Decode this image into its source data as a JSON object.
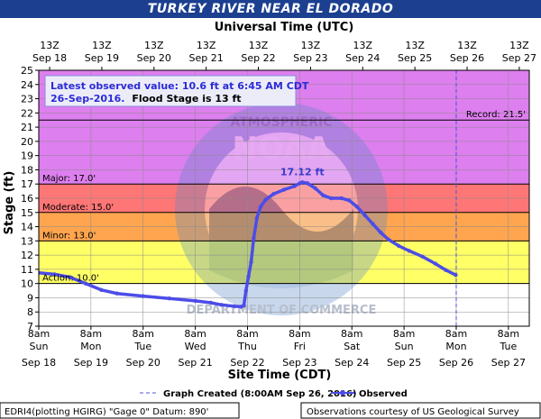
{
  "title": "TURKEY RIVER NEAR EL DORADO",
  "top_axis_title": "Universal Time (UTC)",
  "bottom_axis_title": "Site Time (CDT)",
  "y_axis_title": "Stage (ft)",
  "info_box": {
    "line1": "Latest observed value: 10.6 ft at 6:45 AM CDT",
    "line2_date": "26-Sep-2016.",
    "line2_rest": "Flood Stage is 13 ft"
  },
  "peak_label": "17.12 ft",
  "legend": {
    "graph_created": "Graph Created (8:00AM Sep 26, 2016)",
    "observed": "Observed"
  },
  "footer_left": "EDRI4(plotting HGIRG) \"Gage 0\" Datum: 890'",
  "footer_right": "Observations courtesy of US Geological Survey",
  "colors": {
    "title_bar": "#1c3f8f",
    "record_band": "#dd7fee",
    "major_band": "#ff7676",
    "moderate_band": "#ffa54f",
    "minor_band": "#ffff66",
    "observed_line": "#4c4ce8",
    "info_text": "#2a2ad6"
  },
  "chart_data": {
    "type": "line",
    "ylim": [
      7,
      25
    ],
    "xlim_days": [
      0,
      9
    ],
    "top_ticks": [
      {
        "time": "13Z",
        "date": "Sep 18"
      },
      {
        "time": "13Z",
        "date": "Sep 19"
      },
      {
        "time": "13Z",
        "date": "Sep 20"
      },
      {
        "time": "13Z",
        "date": "Sep 21"
      },
      {
        "time": "13Z",
        "date": "Sep 22"
      },
      {
        "time": "13Z",
        "date": "Sep 23"
      },
      {
        "time": "13Z",
        "date": "Sep 24"
      },
      {
        "time": "13Z",
        "date": "Sep 25"
      },
      {
        "time": "13Z",
        "date": "Sep 26"
      },
      {
        "time": "13Z",
        "date": "Sep 27"
      }
    ],
    "bottom_ticks": [
      {
        "time": "8am",
        "day": "Sun",
        "date": "Sep 18"
      },
      {
        "time": "8am",
        "day": "Mon",
        "date": "Sep 19"
      },
      {
        "time": "8am",
        "day": "Tue",
        "date": "Sep 20"
      },
      {
        "time": "8am",
        "day": "Wed",
        "date": "Sep 21"
      },
      {
        "time": "8am",
        "day": "Thu",
        "date": "Sep 22"
      },
      {
        "time": "8am",
        "day": "Fri",
        "date": "Sep 23"
      },
      {
        "time": "8am",
        "day": "Sat",
        "date": "Sep 24"
      },
      {
        "time": "8am",
        "day": "Sun",
        "date": "Sep 25"
      },
      {
        "time": "8am",
        "day": "Mon",
        "date": "Sep 26"
      },
      {
        "time": "8am",
        "day": "Tue",
        "date": "Sep 27"
      }
    ],
    "y_ticks": [
      7,
      8,
      9,
      10,
      11,
      12,
      13,
      14,
      15,
      16,
      17,
      18,
      19,
      20,
      21,
      22,
      23,
      24,
      25
    ],
    "thresholds": [
      {
        "label": "Record: 21.5'",
        "value": 21.5,
        "side": "right"
      },
      {
        "label": "Major: 17.0'",
        "value": 17.0,
        "side": "left"
      },
      {
        "label": "Moderate: 15.0'",
        "value": 15.0,
        "side": "left"
      },
      {
        "label": "Minor: 13.0'",
        "value": 13.0,
        "side": "left"
      },
      {
        "label": "Action: 10.0'",
        "value": 10.0,
        "side": "left"
      }
    ],
    "graph_created_day": 8.0,
    "series": [
      {
        "name": "Observed",
        "points": [
          [
            0.0,
            10.75
          ],
          [
            0.3,
            10.65
          ],
          [
            0.6,
            10.45
          ],
          [
            0.9,
            10.0
          ],
          [
            1.2,
            9.55
          ],
          [
            1.5,
            9.3
          ],
          [
            2.0,
            9.12
          ],
          [
            2.5,
            8.95
          ],
          [
            3.0,
            8.78
          ],
          [
            3.3,
            8.65
          ],
          [
            3.5,
            8.5
          ],
          [
            3.75,
            8.4
          ],
          [
            3.88,
            8.37
          ],
          [
            3.93,
            8.45
          ],
          [
            3.97,
            9.5
          ],
          [
            4.02,
            10.5
          ],
          [
            4.07,
            11.5
          ],
          [
            4.12,
            13.2
          ],
          [
            4.18,
            14.6
          ],
          [
            4.25,
            15.4
          ],
          [
            4.35,
            15.9
          ],
          [
            4.5,
            16.3
          ],
          [
            4.7,
            16.6
          ],
          [
            4.9,
            16.85
          ],
          [
            5.0,
            17.05
          ],
          [
            5.05,
            17.12
          ],
          [
            5.15,
            17.05
          ],
          [
            5.3,
            16.7
          ],
          [
            5.45,
            16.2
          ],
          [
            5.6,
            16.0
          ],
          [
            5.8,
            16.0
          ],
          [
            5.95,
            15.85
          ],
          [
            6.1,
            15.4
          ],
          [
            6.25,
            14.8
          ],
          [
            6.4,
            14.2
          ],
          [
            6.55,
            13.6
          ],
          [
            6.7,
            13.1
          ],
          [
            6.9,
            12.65
          ],
          [
            7.1,
            12.3
          ],
          [
            7.35,
            11.9
          ],
          [
            7.6,
            11.4
          ],
          [
            7.8,
            10.95
          ],
          [
            7.99,
            10.6
          ]
        ]
      }
    ]
  }
}
